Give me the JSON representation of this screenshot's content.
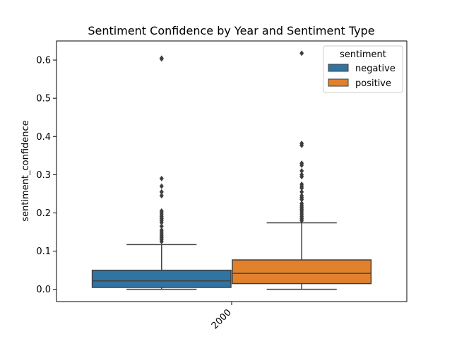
{
  "chart_data": {
    "type": "box",
    "title": "Sentiment Confidence by Year and Sentiment Type",
    "xlabel": "",
    "ylabel": "sentiment_confidence",
    "categories": [
      "2000"
    ],
    "ylim": [
      -0.032,
      0.65
    ],
    "yticks": [
      "0.0",
      "0.1",
      "0.2",
      "0.3",
      "0.4",
      "0.5",
      "0.6"
    ],
    "legend": {
      "title": "sentiment",
      "position": "top-right"
    },
    "series": [
      {
        "name": "negative",
        "color": "#3274a1",
        "q1": 0.005,
        "median": 0.022,
        "q3": 0.05,
        "whisker_low": 0.0,
        "whisker_high": 0.117,
        "outliers": [
          0.605,
          0.603,
          0.29,
          0.27,
          0.255,
          0.245,
          0.205,
          0.2,
          0.195,
          0.19,
          0.185,
          0.18,
          0.175,
          0.165,
          0.155,
          0.15,
          0.145,
          0.14,
          0.135,
          0.13,
          0.125
        ]
      },
      {
        "name": "positive",
        "color": "#e1812c",
        "q1": 0.015,
        "median": 0.042,
        "q3": 0.077,
        "whisker_low": 0.0,
        "whisker_high": 0.174,
        "outliers": [
          0.618,
          0.382,
          0.377,
          0.33,
          0.325,
          0.31,
          0.3,
          0.295,
          0.275,
          0.27,
          0.265,
          0.255,
          0.245,
          0.24,
          0.235,
          0.225,
          0.22,
          0.215,
          0.21,
          0.205,
          0.2,
          0.195,
          0.19,
          0.185,
          0.18
        ]
      }
    ]
  }
}
